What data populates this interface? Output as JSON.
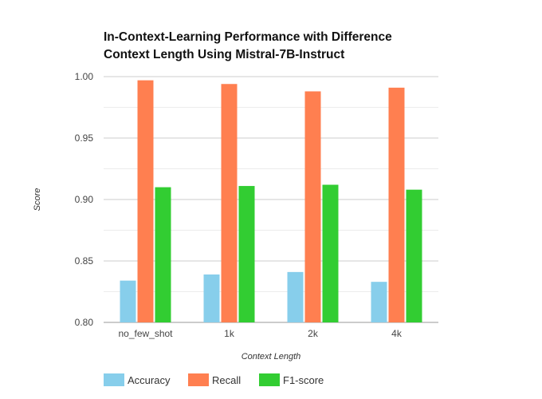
{
  "chart_data": {
    "type": "bar",
    "title_lines": [
      "In-Context-Learning Performance with Difference",
      "Context Length Using Mistral-7B-Instruct"
    ],
    "xlabel": "Context Length",
    "ylabel": "Score",
    "categories": [
      "no_few_shot",
      "1k",
      "2k",
      "4k"
    ],
    "ylim": [
      0.8,
      1.0
    ],
    "yticks": [
      "0.80",
      "0.85",
      "0.90",
      "0.95",
      "1.00"
    ],
    "grid": true,
    "legend_position": "bottom-left",
    "series": [
      {
        "name": "Accuracy",
        "color": "#87ceeb",
        "values": [
          0.834,
          0.839,
          0.841,
          0.833
        ]
      },
      {
        "name": "Recall",
        "color": "#ff7f50",
        "values": [
          0.997,
          0.994,
          0.988,
          0.991
        ]
      },
      {
        "name": "F1-score",
        "color": "#32cd32",
        "values": [
          0.91,
          0.911,
          0.912,
          0.908
        ]
      }
    ]
  }
}
